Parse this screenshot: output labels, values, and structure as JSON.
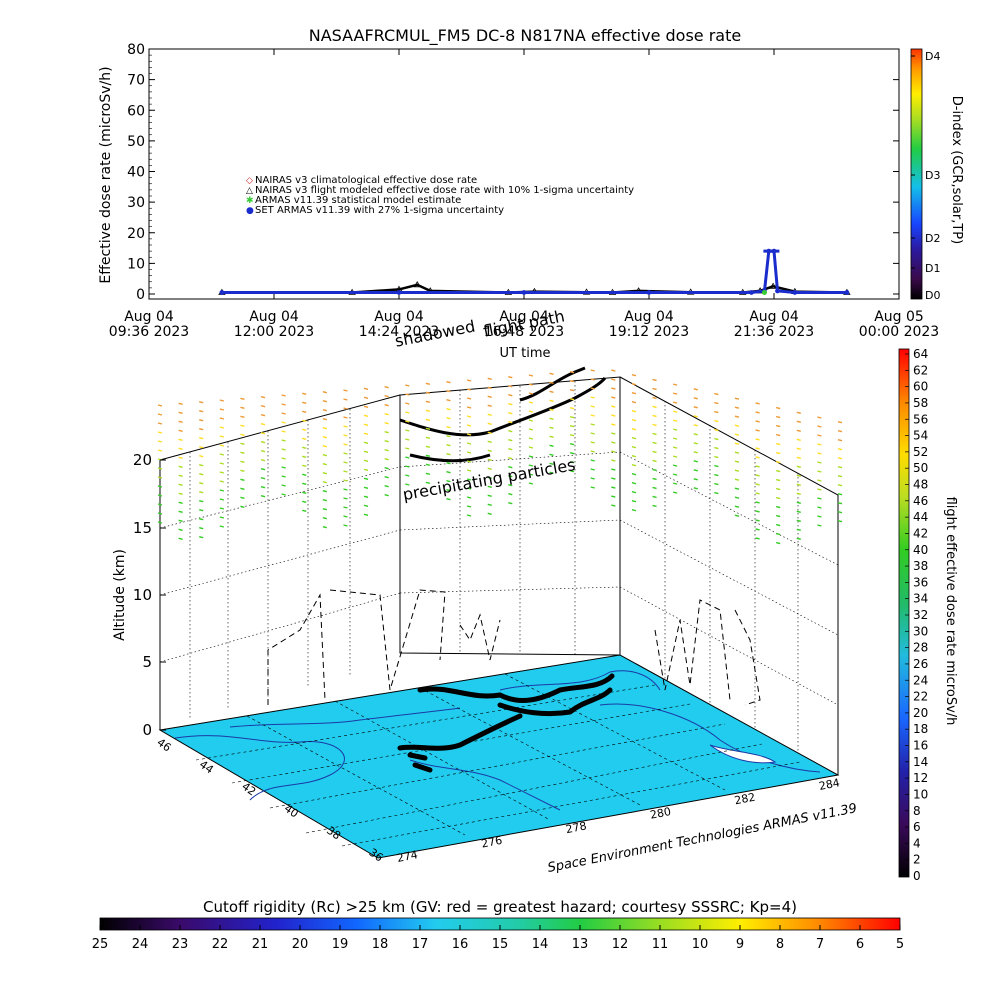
{
  "title": "NASAAFRCMUL_FM5 DC-8   N817NA effective dose rate",
  "top_chart": {
    "ylabel": "Effective dose rate (microSv/h)",
    "xlabel": "UT time",
    "yticks": [
      "0",
      "10",
      "20",
      "30",
      "40",
      "50",
      "60",
      "70",
      "80"
    ],
    "xticks": [
      {
        "day": "Aug 04",
        "time": "09:36 2023"
      },
      {
        "day": "Aug 04",
        "time": "12:00 2023"
      },
      {
        "day": "Aug 04",
        "time": "14:24 2023"
      },
      {
        "day": "Aug 04",
        "time": "16:48 2023"
      },
      {
        "day": "Aug 04",
        "time": "19:12 2023"
      },
      {
        "day": "Aug 04",
        "time": "21:36 2023"
      },
      {
        "day": "Aug 05",
        "time": "00:00 2023"
      }
    ],
    "legend": [
      {
        "symbol": "◇",
        "color": "#cc2222",
        "label": "NAIRAS v3 climatological effective dose rate"
      },
      {
        "symbol": "△",
        "color": "#000000",
        "label": "NAIRAS v3 flight modeled effective dose rate with 10% 1-sigma uncertainty"
      },
      {
        "symbol": "✱",
        "color": "#33cc33",
        "label": "ARMAS v11.39 statistical model estimate"
      },
      {
        "symbol": "●",
        "color": "#1a2ccc",
        "label": "SET ARMAS v11.39 with 27% 1-sigma uncertainty"
      }
    ]
  },
  "dindex_bar": {
    "label": "D-index (GCR,solar,TP)",
    "ticks": [
      "D4",
      "D3",
      "D2",
      "D1",
      "D0"
    ]
  },
  "overlay_text": {
    "flight_path": "flight path",
    "shadowed": "shadowed",
    "precipitating": "precipitating particles"
  },
  "three_d": {
    "zlabel": "Altitude (km)",
    "zticks": [
      "0",
      "5",
      "10",
      "15",
      "20"
    ],
    "lat_ticks": [
      "46",
      "44",
      "42",
      "40",
      "38",
      "36"
    ],
    "lon_ticks": [
      "274",
      "276",
      "278",
      "280",
      "282",
      "284"
    ],
    "credit": "Space Environment Technologies ARMAS v11.39"
  },
  "dose_bar": {
    "label": "flight effective dose rate microSv/h",
    "ticks": [
      "64",
      "62",
      "60",
      "58",
      "56",
      "54",
      "52",
      "50",
      "48",
      "46",
      "44",
      "42",
      "40",
      "38",
      "36",
      "34",
      "32",
      "30",
      "28",
      "26",
      "24",
      "22",
      "20",
      "18",
      "16",
      "14",
      "12",
      "10",
      "8",
      "6",
      "4",
      "2",
      "0"
    ]
  },
  "cutoff_bar": {
    "label": "Cutoff rigidity (Rc) >25 km (GV: red = greatest hazard; courtesy SSSRC; Kp=4)",
    "ticks": [
      "25",
      "24",
      "23",
      "22",
      "21",
      "20",
      "19",
      "18",
      "17",
      "16",
      "15",
      "14",
      "13",
      "12",
      "11",
      "10",
      "9",
      "8",
      "7",
      "6",
      "5"
    ]
  },
  "chart_data": {
    "type": "line",
    "title": "NASAAFRCMUL_FM5 DC-8   N817NA effective dose rate",
    "xlabel": "UT time",
    "ylabel": "Effective dose rate (microSv/h)",
    "ylim": [
      0,
      80
    ],
    "x_axis_range": [
      "2023-08-04 09:36",
      "2023-08-05 00:00"
    ],
    "legend_position": "upper-left",
    "series": [
      {
        "name": "NAIRAS v3 flight modeled effective dose rate with 10% 1-sigma uncertainty",
        "x": [
          "2023-08-04 11:00",
          "2023-08-04 13:30",
          "2023-08-04 14:24",
          "2023-08-04 14:45",
          "2023-08-04 15:00",
          "2023-08-04 16:30",
          "2023-08-04 17:00",
          "2023-08-04 18:00",
          "2023-08-04 18:30",
          "2023-08-04 19:00",
          "2023-08-04 20:00",
          "2023-08-04 21:00",
          "2023-08-04 21:20",
          "2023-08-04 21:35",
          "2023-08-04 22:00",
          "2023-08-04 23:00"
        ],
        "y": [
          0.5,
          0.5,
          1.5,
          3.0,
          1.0,
          0.5,
          0.8,
          0.6,
          0.5,
          1.0,
          0.6,
          0.5,
          1.0,
          2.5,
          0.8,
          0.5
        ]
      },
      {
        "name": "SET ARMAS v11.39 with 27% 1-sigma uncertainty",
        "x": [
          "2023-08-04 11:00",
          "2023-08-04 14:24",
          "2023-08-04 16:48",
          "2023-08-04 19:12",
          "2023-08-04 21:10",
          "2023-08-04 21:25",
          "2023-08-04 21:30",
          "2023-08-04 21:36",
          "2023-08-04 21:40",
          "2023-08-04 22:00",
          "2023-08-04 23:00"
        ],
        "y": [
          0.5,
          0.5,
          0.5,
          0.5,
          0.5,
          1.0,
          14.0,
          14.0,
          1.0,
          0.5,
          0.5
        ]
      },
      {
        "name": "ARMAS v11.39 statistical model estimate",
        "x": [
          "2023-08-04 21:25"
        ],
        "y": [
          0.5
        ]
      }
    ]
  }
}
